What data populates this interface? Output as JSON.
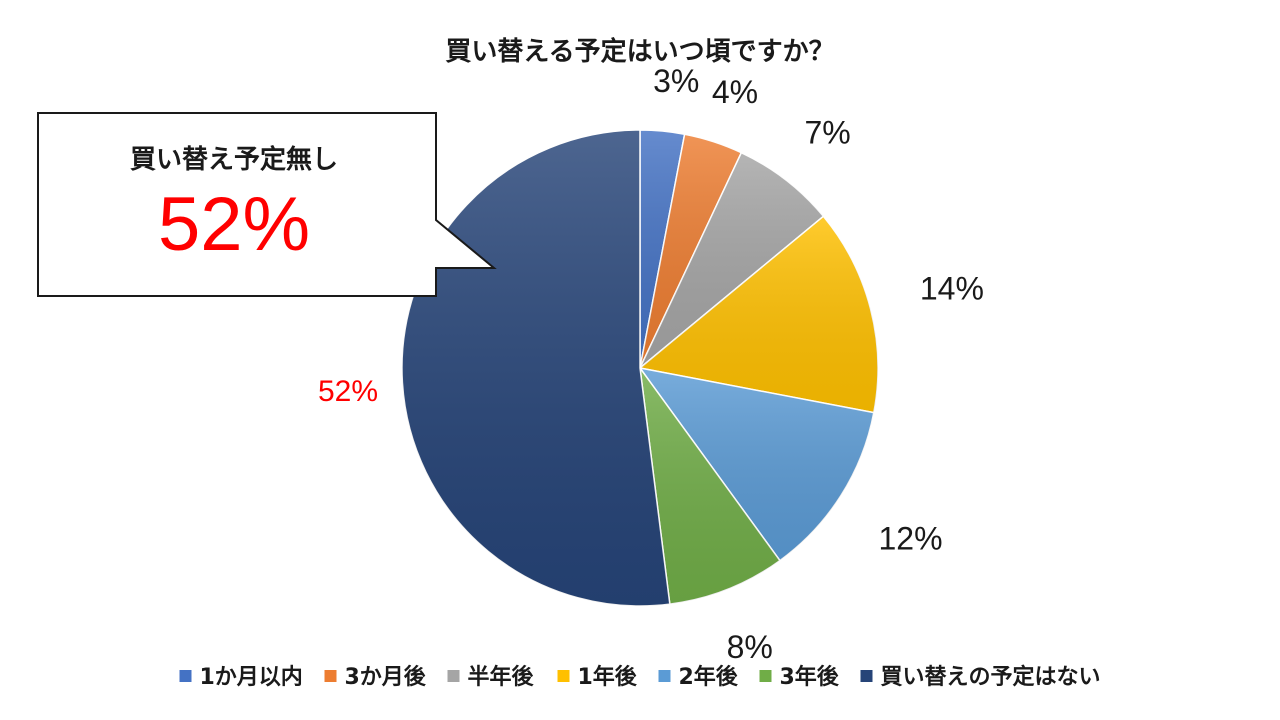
{
  "chart_data": {
    "type": "pie",
    "title": "買い替える予定はいつ頃ですか？",
    "categories": [
      "1か月以内",
      "3か月後",
      "半年後",
      "1年後",
      "2年後",
      "3年後",
      "買い替えの予定はない"
    ],
    "values": [
      3,
      4,
      7,
      14,
      12,
      8,
      52
    ],
    "labels": [
      "3%",
      "4%",
      "7%",
      "14%",
      "12%",
      "8%",
      "52%"
    ],
    "colors": [
      "#4472c4",
      "#ed7d31",
      "#a5a5a5",
      "#ffc000",
      "#5b9bd5",
      "#70ad47",
      "#264478"
    ],
    "highlight_color": "#ff0000",
    "legend_position": "bottom",
    "callout": {
      "caption": "買い替え予定無し",
      "value": "52%"
    }
  }
}
